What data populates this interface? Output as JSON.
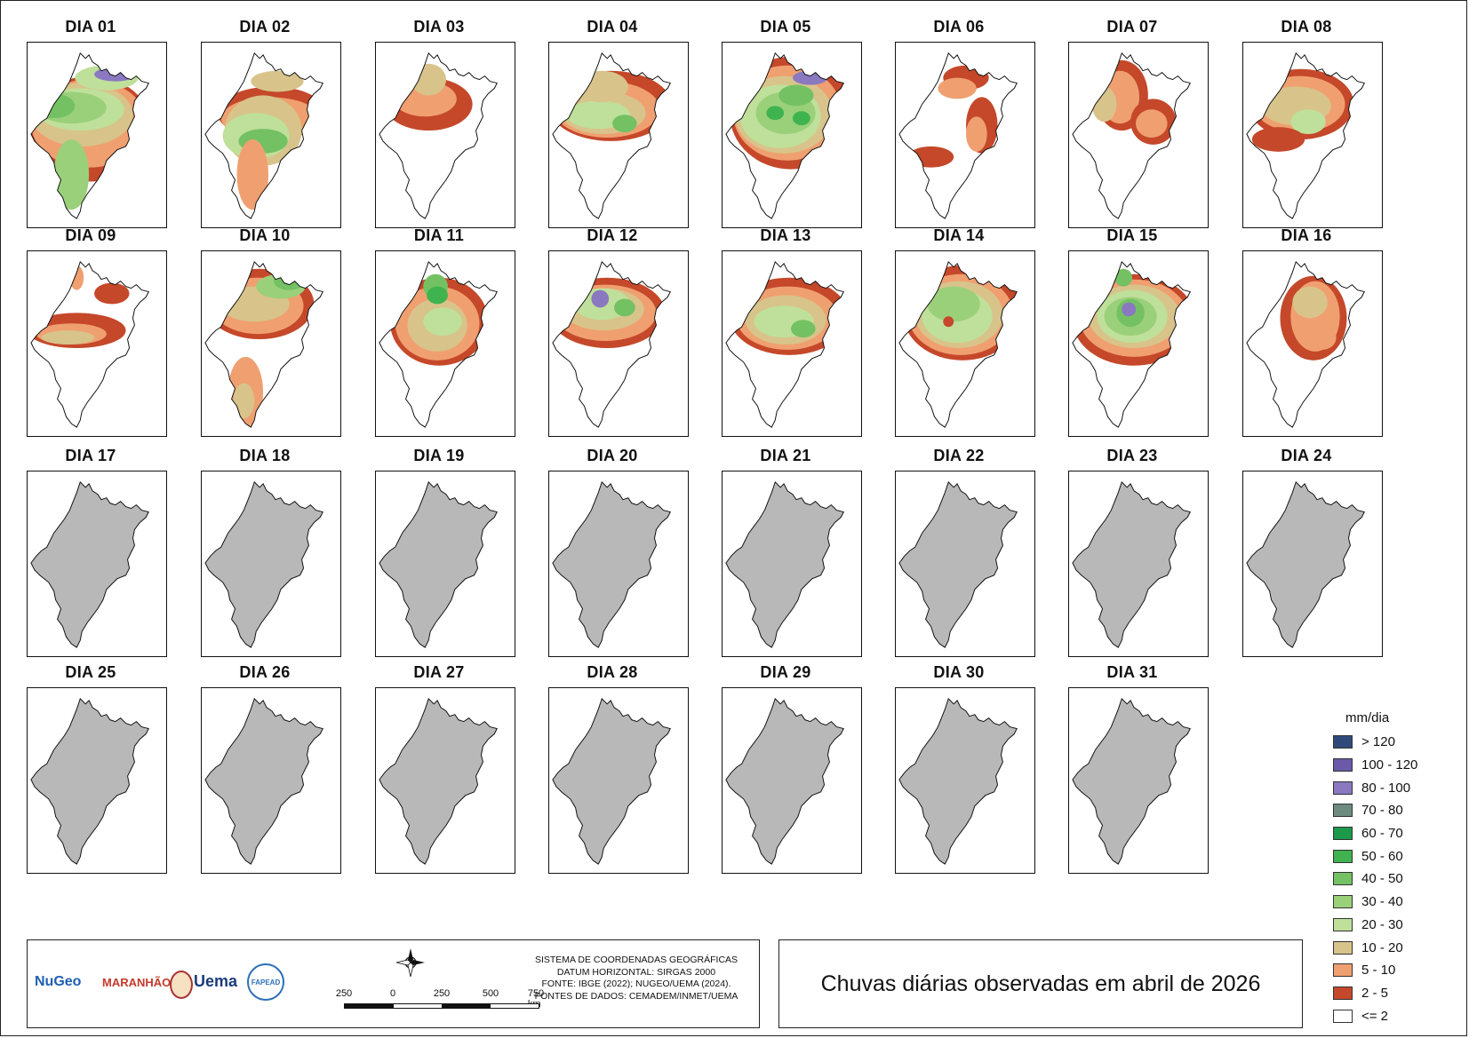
{
  "days": [
    "DIA 01",
    "DIA 02",
    "DIA 03",
    "DIA 04",
    "DIA 05",
    "DIA 06",
    "DIA 07",
    "DIA 08",
    "DIA 09",
    "DIA 10",
    "DIA 11",
    "DIA 12",
    "DIA 13",
    "DIA 14",
    "DIA 15",
    "DIA 16",
    "DIA 17",
    "DIA 18",
    "DIA 19",
    "DIA 20",
    "DIA 21",
    "DIA 22",
    "DIA 23",
    "DIA 24",
    "DIA 25",
    "DIA 26",
    "DIA 27",
    "DIA 28",
    "DIA 29",
    "DIA 30",
    "DIA 31"
  ],
  "observed_days": 16,
  "legend": {
    "title": "mm/dia",
    "items": [
      {
        "label": "> 120",
        "color": "#2f4a7a"
      },
      {
        "label": "100 - 120",
        "color": "#6a5aa8"
      },
      {
        "label": "80 - 100",
        "color": "#8a78c0"
      },
      {
        "label": "70 - 80",
        "color": "#6e8b80"
      },
      {
        "label": "60 - 70",
        "color": "#1c9a4a"
      },
      {
        "label": "50 - 60",
        "color": "#3fb34f"
      },
      {
        "label": "40 - 50",
        "color": "#74c163"
      },
      {
        "label": "30 - 40",
        "color": "#9bd07a"
      },
      {
        "label": "20 - 30",
        "color": "#bfe09a"
      },
      {
        "label": "10 - 20",
        "color": "#d8c48a"
      },
      {
        "label": "5 - 10",
        "color": "#f0a070"
      },
      {
        "label": "2 - 5",
        "color": "#c5482a"
      },
      {
        "label": "<= 2",
        "color": "#ffffff"
      }
    ]
  },
  "title": "Chuvas diárias observadas em abril de 2026",
  "metadata_lines": [
    "SISTEMA DE COORDENADAS GEOGRÁFICAS",
    "DATUM HORIZONTAL: SIRGAS 2000",
    "FONTE: IBGE (2022); NUGEO/UEMA (2024).",
    "FONTES DE DADOS: CEMADEM/INMET/UEMA"
  ],
  "scale": {
    "labels": [
      "250",
      "0",
      "250",
      "500",
      "750 km"
    ]
  },
  "logos": [
    "NuGeo",
    "MARANHÃO",
    "Uema",
    "FAPEAD"
  ],
  "no_data_color": "#b8b8b8"
}
